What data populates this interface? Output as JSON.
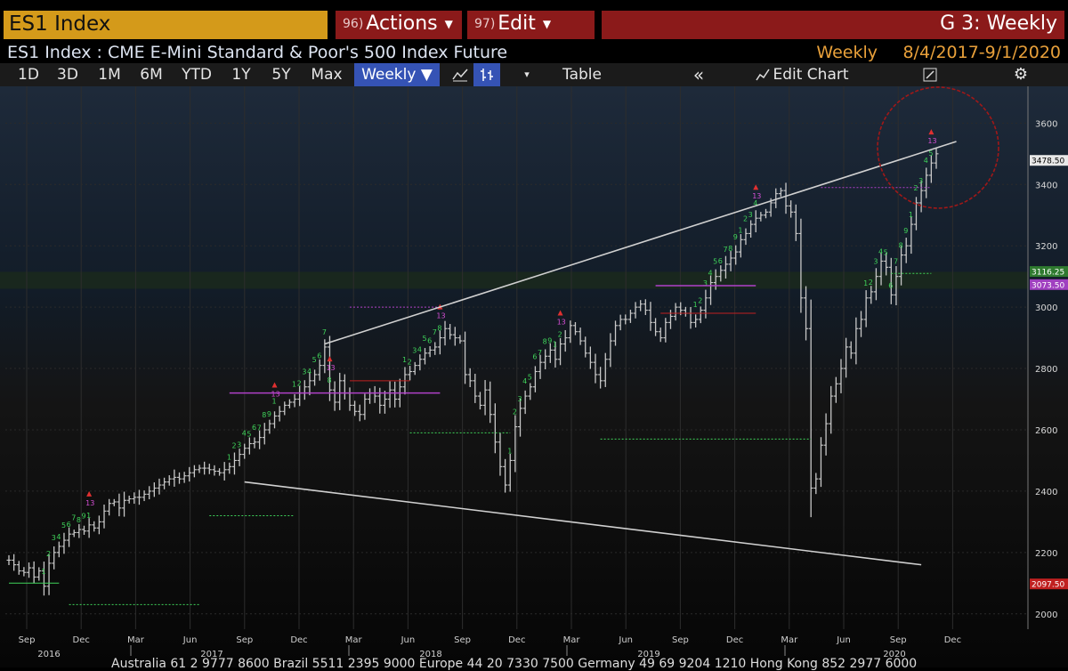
{
  "titlebar": {
    "ticker": "ES1 Index",
    "actions_num": "96)",
    "actions_label": "Actions",
    "edit_num": "97)",
    "edit_label": "Edit",
    "right_label": "G 3: Weekly"
  },
  "subheader": {
    "title": "ES1 Index : CME E-Mini Standard & Poor's 500 Index Future",
    "period": "Weekly",
    "range": "8/4/2017-9/1/2020"
  },
  "toolbar": {
    "buttons": [
      "1D",
      "3D",
      "1M",
      "6M",
      "YTD",
      "1Y",
      "5Y",
      "Max"
    ],
    "weekly": "Weekly ▼",
    "table": "Table",
    "edit_chart": "Edit Chart"
  },
  "footer": {
    "ticker_text": "Australia 61 2 9777 8600 Brazil 5511 2395 9000 Europe 44 20 7330 7500 Germany 49 69 9204 1210 Hong Kong 852 2977 6000"
  },
  "colors": {
    "titlebar_ticker_bg": "#d49a1a",
    "titlebar_menu_bg": "#8b1a1a",
    "weekly_button_bg": "#3553b5",
    "price_bars": "#c8c8c8",
    "td_setup_green": "#3fd35a",
    "td_countdown_magenta": "#d64fd6",
    "td_arrow_red": "#e03030",
    "trendline": "#d0d0d0",
    "highlight_circle": "#a01818",
    "last_price_label_bg": "#e8e8e8",
    "green_level_bg": "#2f7a2f",
    "magenta_level_bg": "#a040c0",
    "red_level_bg": "#c02020"
  },
  "chart_data": {
    "type": "ohlc",
    "ylim": [
      1950,
      3720
    ],
    "y_ticks": [
      2000,
      2200,
      2400,
      2600,
      2800,
      3000,
      3200,
      3400,
      3600
    ],
    "y_tick_labels": [
      "2000",
      "2200",
      "2400",
      "2600",
      "2800",
      "3000",
      "3200",
      "3400",
      "3600"
    ],
    "x_months": [
      "Sep",
      "Dec",
      "Mar",
      "Jun",
      "Sep",
      "Dec",
      "Mar",
      "Jun",
      "Sep",
      "Dec",
      "Mar",
      "Jun",
      "Sep",
      "Dec",
      "Mar",
      "Jun",
      "Sep",
      "Dec"
    ],
    "x_years": [
      "2016",
      "2017",
      "2018",
      "2019",
      "2020"
    ],
    "price_labels": {
      "last": "3478.50",
      "green": "3116.25",
      "magenta": "3073.50",
      "red": "2097.50"
    },
    "weekly_close": [
      2175,
      2160,
      2140,
      2135,
      2150,
      2120,
      2140,
      2090,
      2165,
      2200,
      2220,
      2240,
      2260,
      2265,
      2275,
      2270,
      2290,
      2280,
      2300,
      2335,
      2360,
      2365,
      2345,
      2370,
      2375,
      2380,
      2380,
      2390,
      2400,
      2410,
      2420,
      2430,
      2440,
      2445,
      2440,
      2450,
      2460,
      2470,
      2475,
      2475,
      2470,
      2465,
      2460,
      2470,
      2480,
      2500,
      2520,
      2540,
      2555,
      2560,
      2575,
      2600,
      2620,
      2645,
      2660,
      2680,
      2690,
      2700,
      2720,
      2740,
      2760,
      2780,
      2810,
      2870,
      2730,
      2690,
      2760,
      2720,
      2680,
      2660,
      2650,
      2700,
      2720,
      2710,
      2680,
      2700,
      2730,
      2700,
      2740,
      2780,
      2790,
      2810,
      2830,
      2850,
      2860,
      2870,
      2900,
      2930,
      2910,
      2900,
      2890,
      2780,
      2760,
      2710,
      2680,
      2730,
      2650,
      2560,
      2480,
      2420,
      2500,
      2610,
      2670,
      2710,
      2740,
      2790,
      2820,
      2840,
      2860,
      2830,
      2880,
      2900,
      2940,
      2920,
      2890,
      2850,
      2820,
      2780,
      2760,
      2830,
      2890,
      2940,
      2960,
      2960,
      2980,
      3000,
      3010,
      2990,
      2950,
      2920,
      2900,
      2950,
      2970,
      3000,
      2990,
      2980,
      2950,
      2960,
      2990,
      3030,
      3080,
      3100,
      3120,
      3140,
      3160,
      3180,
      3220,
      3240,
      3270,
      3290,
      3300,
      3310,
      3340,
      3370,
      3380,
      3330,
      3310,
      3240,
      3030,
      2930,
      2410,
      2440,
      2550,
      2620,
      2710,
      2750,
      2800,
      2870,
      2850,
      2930,
      2960,
      3030,
      3050,
      3100,
      3150,
      3130,
      3040,
      3100,
      3170,
      3200,
      3270,
      3340,
      3380,
      3430,
      3470,
      3500
    ]
  }
}
